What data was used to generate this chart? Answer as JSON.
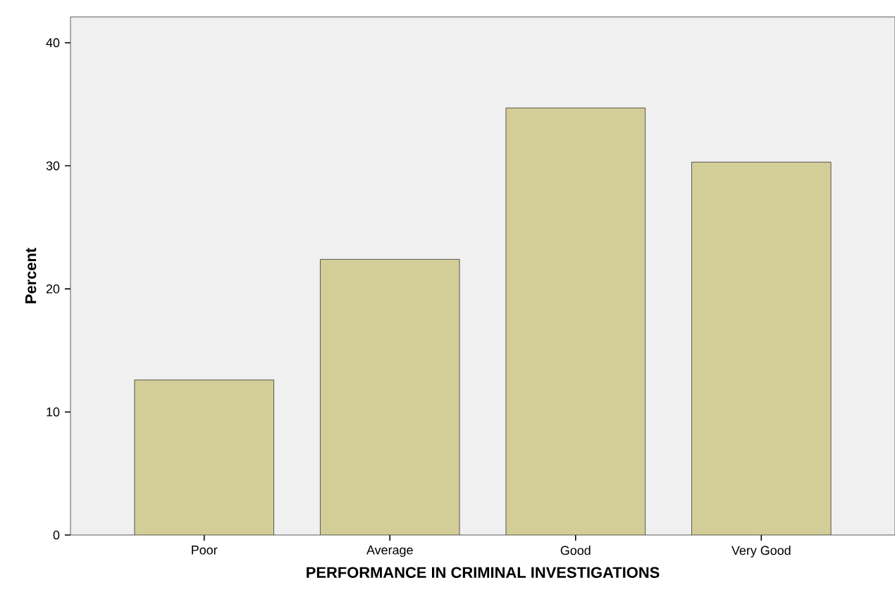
{
  "chart_data": {
    "type": "bar",
    "xlabel": "PERFORMANCE IN CRIMINAL INVESTIGATIONS",
    "ylabel": "Percent",
    "categories": [
      "Poor",
      "Average",
      "Good",
      "Very Good"
    ],
    "values": [
      12.6,
      22.4,
      34.7,
      30.3
    ],
    "color": "#d3ce97",
    "ylim": [
      0,
      42.1
    ],
    "yticks": [
      0,
      10,
      20,
      30,
      40
    ],
    "grid": false
  }
}
